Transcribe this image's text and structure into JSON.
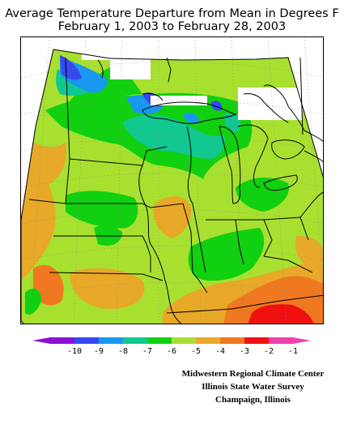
{
  "title_line1": "Average Temperature Departure from Mean in Degrees F",
  "title_line2": "February 1, 2003 to February 28, 2003",
  "legend": {
    "ticks": [
      "-10",
      "-9",
      "-8",
      "-7",
      "-6",
      "-5",
      "-4",
      "-3",
      "-2",
      "-1"
    ],
    "colors": [
      "#8a10d8",
      "#3848f0",
      "#1898f0",
      "#10c890",
      "#10d010",
      "#a8e030",
      "#e8a828",
      "#f07820",
      "#f01010",
      "#f040b0"
    ]
  },
  "credits": {
    "line1": "Midwestern Regional Climate Center",
    "line2": "Illinois State Water Survey",
    "line3": "Champaign, Illinois"
  }
}
